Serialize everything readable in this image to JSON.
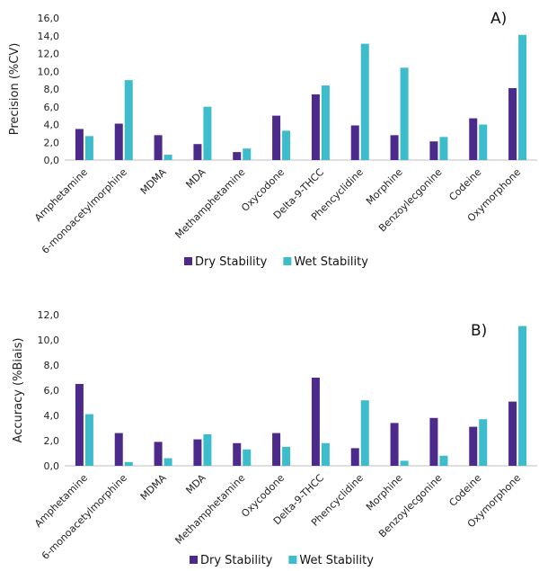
{
  "colors": {
    "dry": "#4B2A8C",
    "wet": "#3DBCCC",
    "axis": "#BFBFBF"
  },
  "chart_data": [
    {
      "type": "bar",
      "panel_label": "A)",
      "ylabel": "Precision (%CV)",
      "ylim": [
        0,
        16
      ],
      "yticks": [
        "0,0",
        "2,0",
        "4,0",
        "6,0",
        "8,0",
        "10,0",
        "12,0",
        "14,0",
        "16,0"
      ],
      "categories": [
        "Amphetamine",
        "6-monoacetylmorphine",
        "MDMA",
        "MDA",
        "Methamphetamine",
        "Oxycodone",
        "Delta-9-THCC",
        "Phencyclidine",
        "Morphine",
        "Benzoylecgonine",
        "Codeine",
        "Oxymorphone"
      ],
      "series": [
        {
          "name": "Dry Stability",
          "values": [
            3.5,
            4.1,
            2.8,
            1.8,
            0.9,
            5.0,
            7.4,
            3.9,
            2.8,
            2.1,
            4.7,
            8.1
          ]
        },
        {
          "name": "Wet Stability",
          "values": [
            2.7,
            9.0,
            0.6,
            6.0,
            1.3,
            3.3,
            8.4,
            13.1,
            10.4,
            2.6,
            4.0,
            14.1
          ]
        }
      ],
      "legend_position": "bottom"
    },
    {
      "type": "bar",
      "panel_label": "B)",
      "ylabel": "Accuracy (%Biais)",
      "ylim": [
        0,
        12
      ],
      "yticks": [
        "0,0",
        "2,0",
        "4,0",
        "6,0",
        "8,0",
        "10,0",
        "12,0"
      ],
      "categories": [
        "Amphetamine",
        "6-monoacetylmorphine",
        "MDMA",
        "MDA",
        "Methamphetamine",
        "Oxycodone",
        "Delta-9-THCC",
        "Phencyclidine",
        "Morphine",
        "Benzoylecgonine",
        "Codeine",
        "Oxymorphone"
      ],
      "series": [
        {
          "name": "Dry Stability",
          "values": [
            6.5,
            2.6,
            1.9,
            2.1,
            1.8,
            2.6,
            7.0,
            1.4,
            3.4,
            3.8,
            3.1,
            5.1
          ]
        },
        {
          "name": "Wet Stability",
          "values": [
            4.1,
            0.3,
            0.6,
            2.5,
            1.3,
            1.5,
            1.8,
            5.2,
            0.4,
            0.8,
            3.7,
            11.1
          ]
        }
      ],
      "legend_position": "bottom"
    }
  ]
}
